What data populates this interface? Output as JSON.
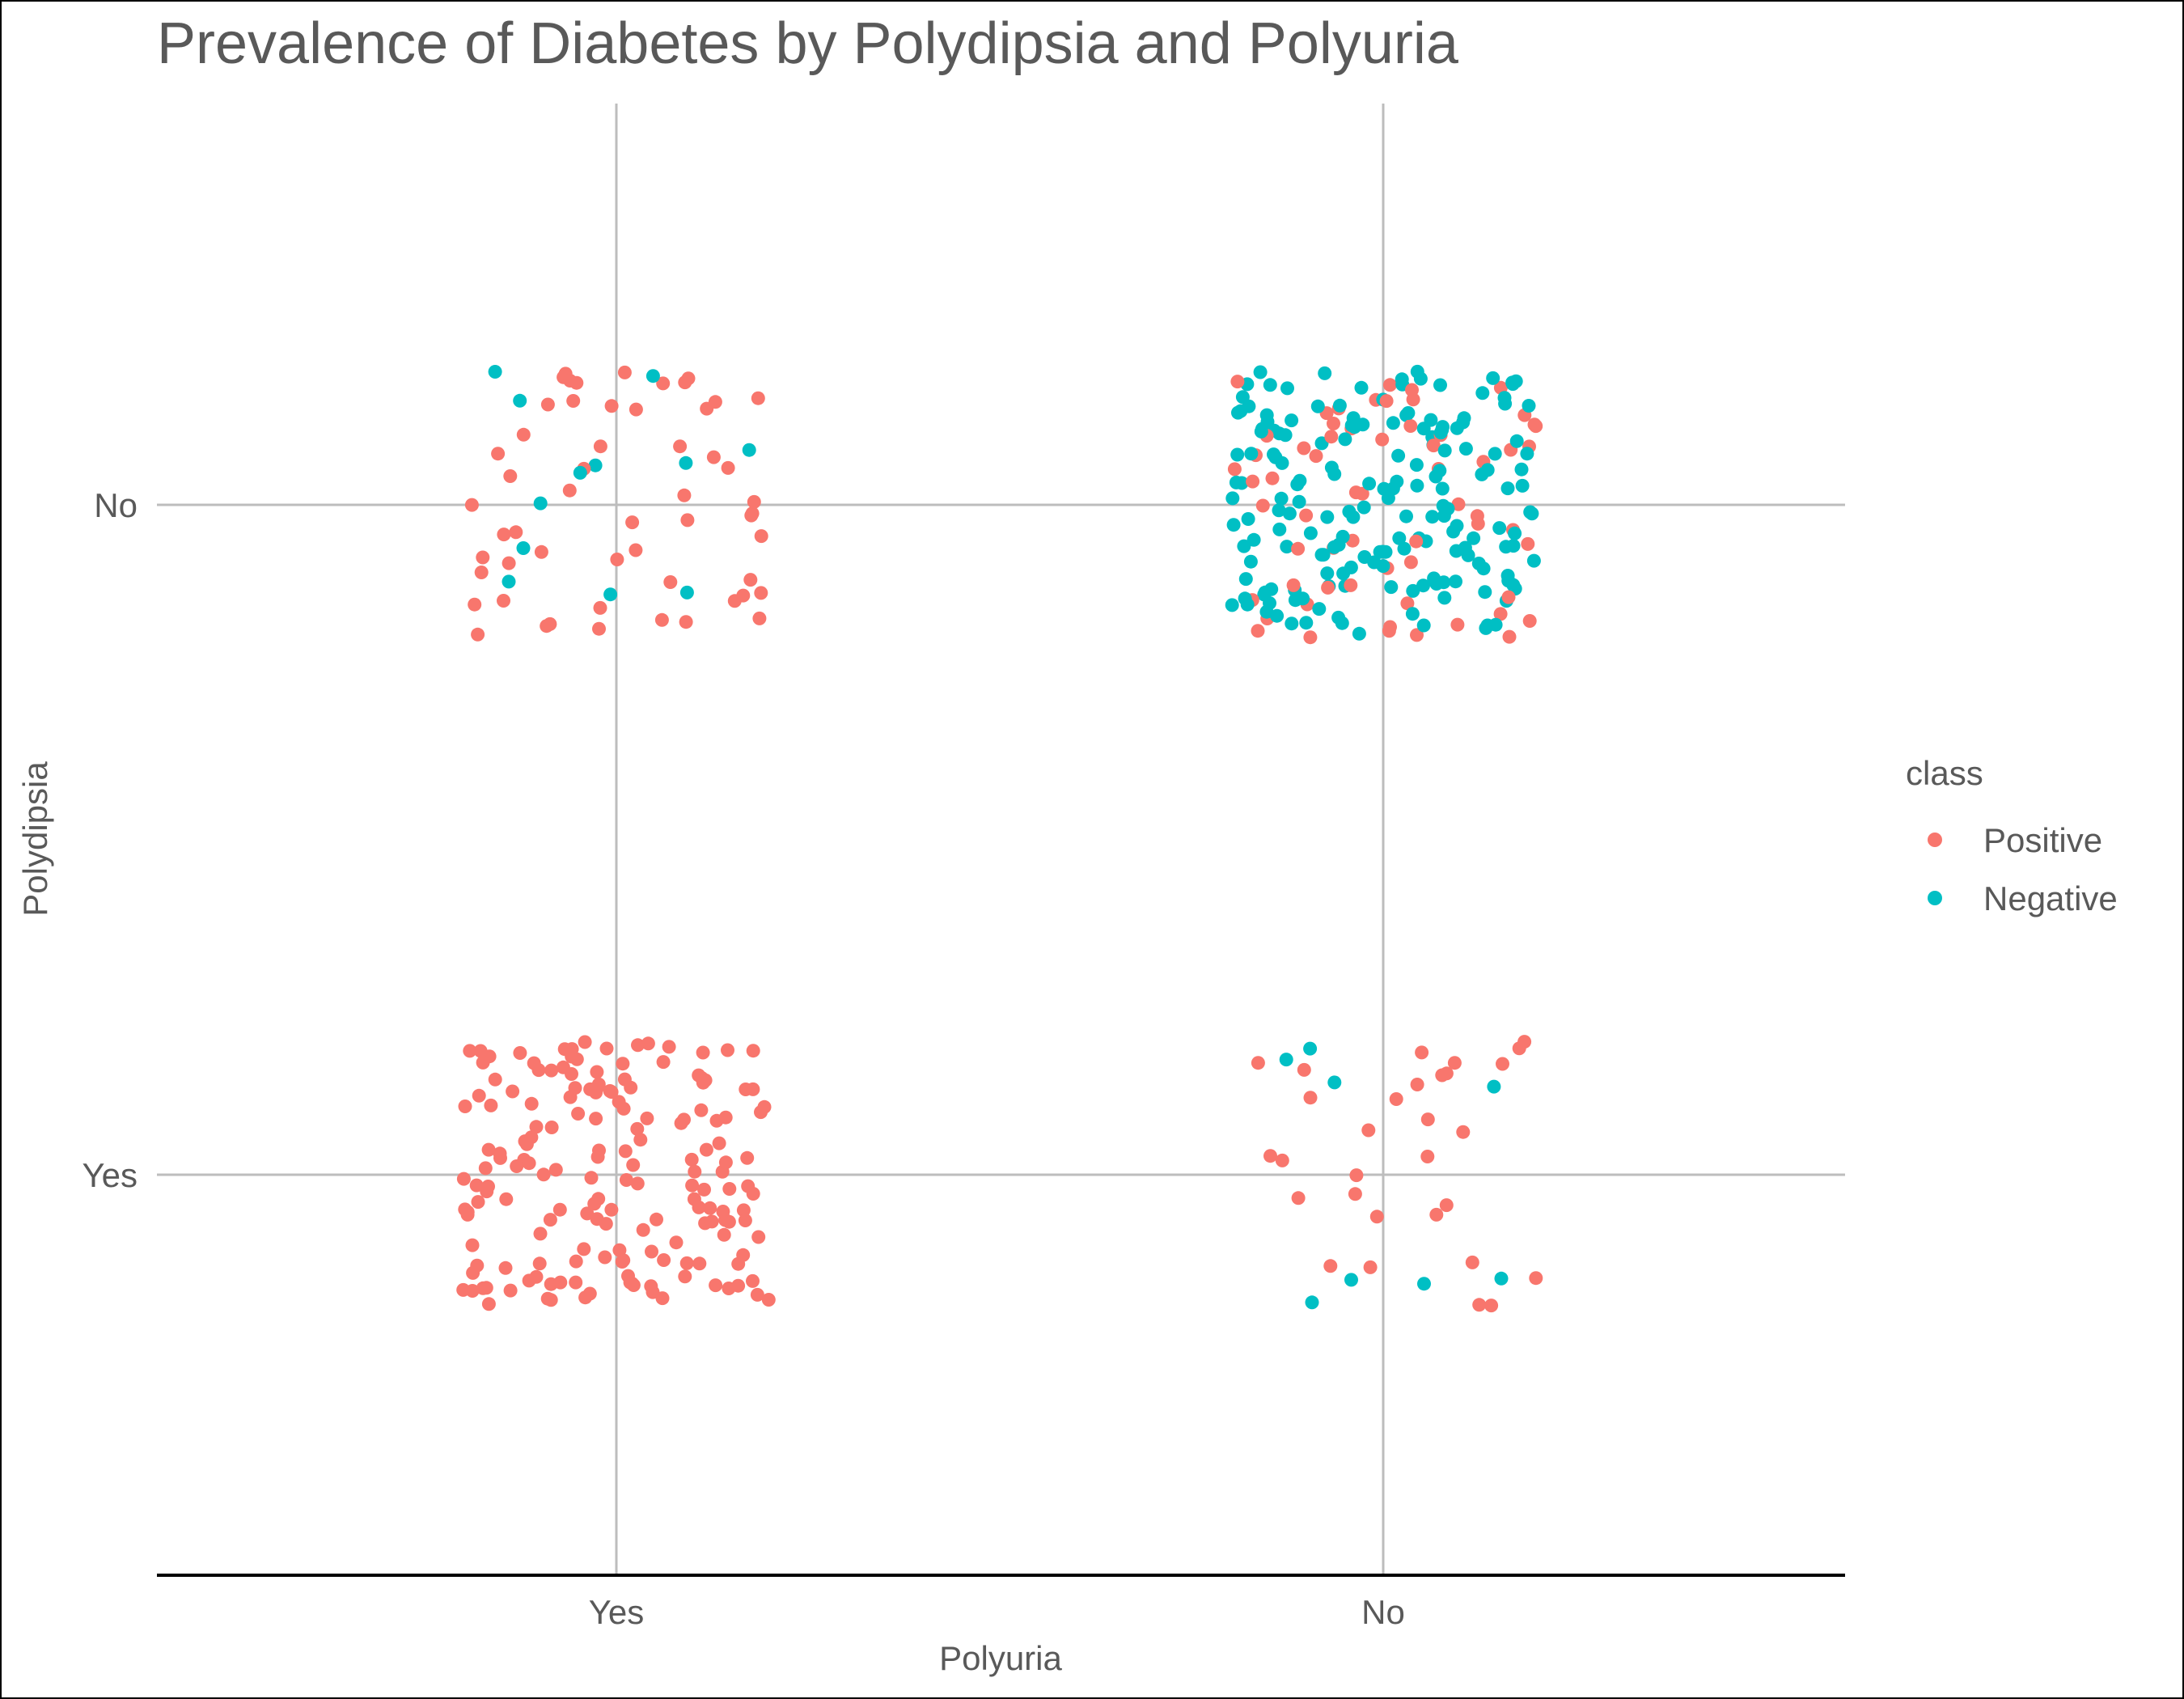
{
  "chart_data": {
    "type": "scatter",
    "title": "Prevalence of Diabetes by Polydipsia and Polyuria",
    "xlabel": "Polyuria",
    "ylabel": "Polydipsia",
    "x_categories": [
      "Yes",
      "No"
    ],
    "y_categories": [
      "Yes",
      "No"
    ],
    "grid": true,
    "jitter": true,
    "legend": {
      "title": "class",
      "position": "right",
      "entries": [
        {
          "name": "Positive",
          "color": "#F8766D"
        },
        {
          "name": "Negative",
          "color": "#00BFC4"
        }
      ]
    },
    "cells": [
      {
        "x": "Yes",
        "y": "Yes",
        "counts": {
          "Positive": 173,
          "Negative": 0
        }
      },
      {
        "x": "Yes",
        "y": "No",
        "counts": {
          "Positive": 55,
          "Negative": 12
        }
      },
      {
        "x": "No",
        "y": "Yes",
        "counts": {
          "Positive": 30,
          "Negative": 8
        }
      },
      {
        "x": "No",
        "y": "No",
        "counts": {
          "Positive": 62,
          "Negative": 180
        }
      }
    ]
  }
}
